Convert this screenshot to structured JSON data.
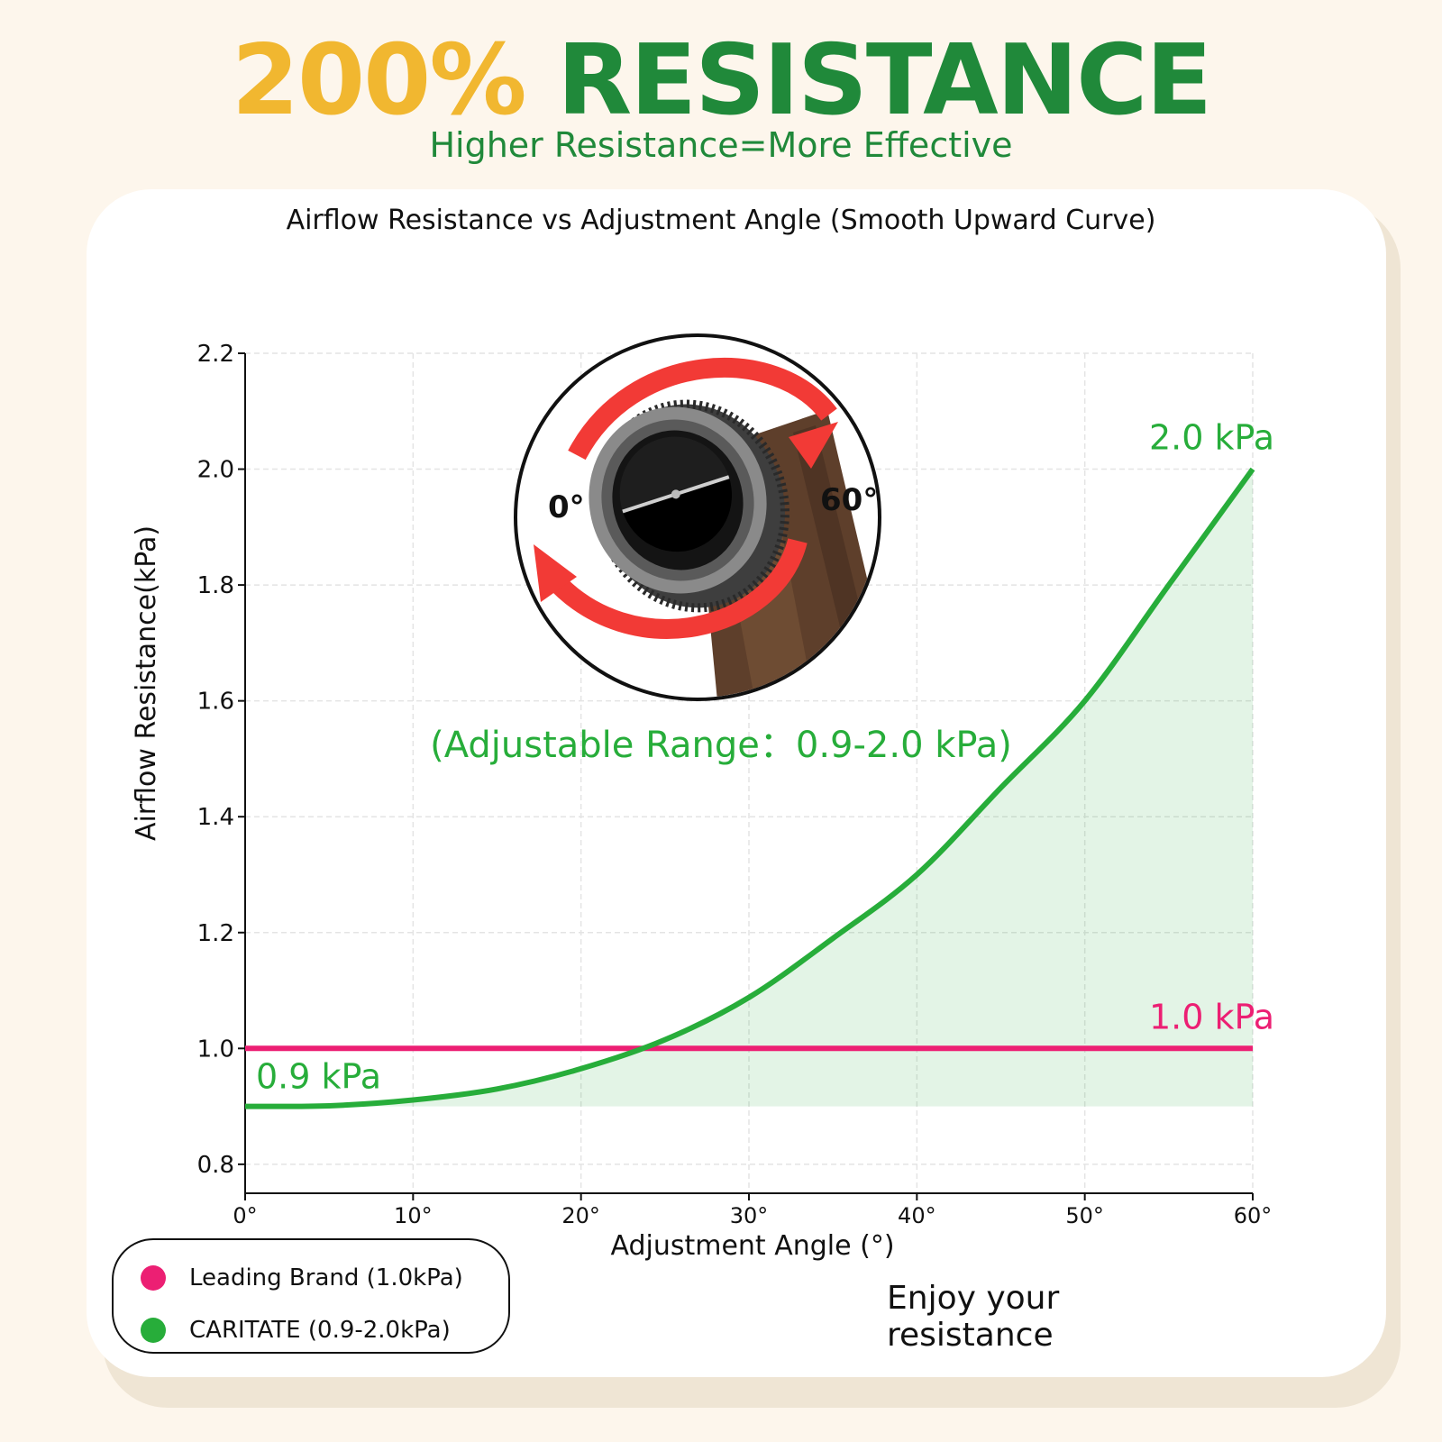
{
  "header": {
    "headline_percent": "200%",
    "headline_word": "RESISTANCE",
    "subtitle": "Higher Resistance=More Effective"
  },
  "footer": {
    "tagline": "Enjoy your resistance"
  },
  "colors": {
    "accent_yellow": "#f1b730",
    "brand_green": "#20893a",
    "curve_green": "#27ad3a",
    "line_pink": "#ec1f73"
  },
  "chart_data": {
    "type": "line",
    "title": "Airflow Resistance vs Adjustment Angle (Smooth Upward Curve)",
    "xlabel": "Adjustment Angle (°)",
    "ylabel": "Airflow Resistance(kPa)",
    "xlim": [
      0,
      60
    ],
    "ylim": [
      0.75,
      2.2
    ],
    "xticks": [
      0,
      10,
      20,
      30,
      40,
      50,
      60
    ],
    "xtick_labels": [
      "0°",
      "10°",
      "20°",
      "30°",
      "40°",
      "50°",
      "60°"
    ],
    "yticks": [
      0.8,
      1.0,
      1.2,
      1.4,
      1.6,
      1.8,
      2.0,
      2.2
    ],
    "ytick_labels": [
      "0.8",
      "1.0",
      "1.2",
      "1.4",
      "1.6",
      "1.8",
      "2.0",
      "2.2"
    ],
    "grid": true,
    "legend_position": "bottom-left",
    "series": [
      {
        "name": "Leading Brand (1.0kPa)",
        "color": "#ec1f73",
        "x": [
          0,
          60
        ],
        "y": [
          1.0,
          1.0
        ],
        "end_label": "1.0 kPa"
      },
      {
        "name": "CARITATE (0.9-2.0kPa)",
        "color": "#27ad3a",
        "x": [
          0,
          5,
          10,
          15,
          20,
          25,
          30,
          35,
          40,
          45,
          50,
          55,
          60
        ],
        "y": [
          0.9,
          0.901,
          0.911,
          0.93,
          0.965,
          1.015,
          1.088,
          1.19,
          1.3,
          1.45,
          1.6,
          1.8,
          2.0
        ],
        "start_label": "0.9 kPa",
        "end_label": "2.0 kPa",
        "fill": true
      }
    ],
    "annotations": {
      "range": "(Adjustable Range：0.9-2.0 kPa)",
      "dial_min": "0°",
      "dial_max": "60°"
    }
  }
}
